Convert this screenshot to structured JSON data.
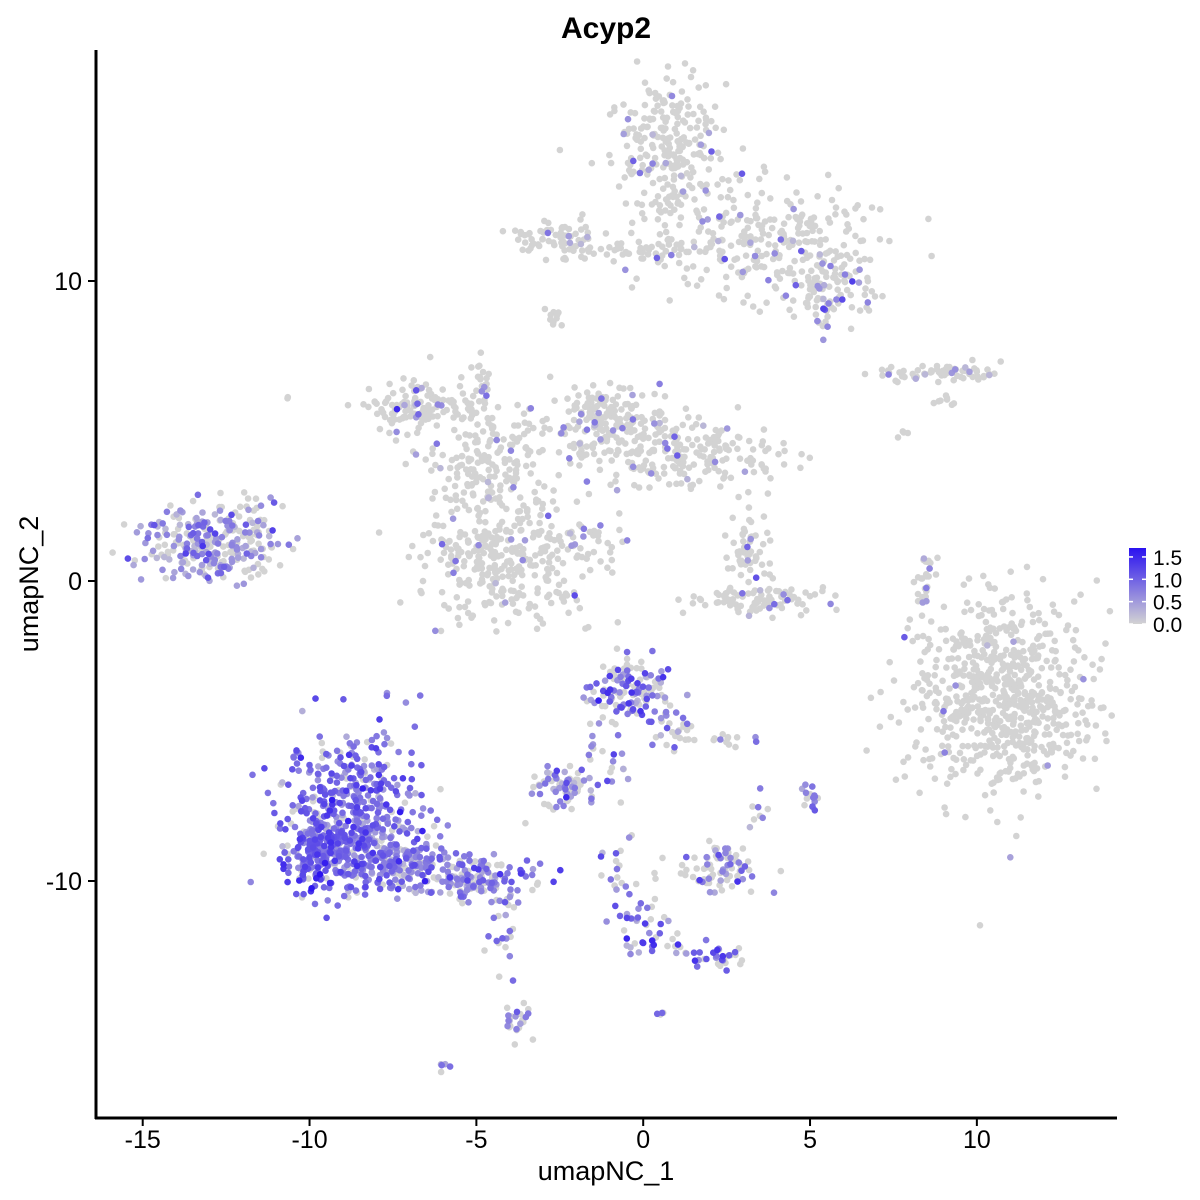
{
  "chart_data": {
    "type": "scatter",
    "title": "Acyp2",
    "xlabel": "umapNC_1",
    "ylabel": "umapNC_2",
    "xlim": [
      -16.4,
      14.2
    ],
    "ylim": [
      -17.9,
      17.7
    ],
    "x_ticks": [
      -15,
      -10,
      -5,
      0,
      5,
      10
    ],
    "x_tick_labels": [
      "-15",
      "-10",
      "-5",
      "0",
      "5",
      "10"
    ],
    "y_ticks": [
      -10,
      0,
      10
    ],
    "y_tick_labels": [
      "-10",
      "0",
      "10"
    ],
    "grid": false,
    "color_scale": {
      "low_color": "#d3d3d3",
      "high_color": "#2a12f0",
      "min": 0.0,
      "max": 1.7,
      "ticks": [
        0.0,
        0.5,
        1.0,
        1.5
      ],
      "tick_labels": [
        "0.0",
        "0.5",
        "1.0",
        "1.5"
      ],
      "legend_position": "right"
    },
    "clusters": [
      {
        "cx": 0.8,
        "cy": 14.4,
        "sx": 0.9,
        "sy": 1.3,
        "n": 260,
        "expr_frac": 0.06,
        "expr_mean": 0.6
      },
      {
        "cx": 3.6,
        "cy": 11.2,
        "sx": 1.7,
        "sy": 0.9,
        "n": 260,
        "expr_frac": 0.06,
        "expr_mean": 0.6
      },
      {
        "cx": 5.6,
        "cy": 9.7,
        "sx": 0.6,
        "sy": 0.5,
        "n": 90,
        "expr_frac": 0.22,
        "expr_mean": 0.7
      },
      {
        "cx": -2.6,
        "cy": 11.5,
        "sx": 0.7,
        "sy": 0.3,
        "n": 70,
        "expr_frac": 0.06,
        "expr_mean": 0.6
      },
      {
        "cx": -0.3,
        "cy": 11.0,
        "sx": 1.1,
        "sy": 0.15,
        "n": 40,
        "expr_frac": 0.05,
        "expr_mean": 0.6
      },
      {
        "cx": -2.7,
        "cy": 8.8,
        "sx": 0.15,
        "sy": 0.25,
        "n": 10,
        "expr_frac": 0.2,
        "expr_mean": 0.6
      },
      {
        "cx": -6.7,
        "cy": 5.8,
        "sx": 0.9,
        "sy": 0.4,
        "n": 120,
        "expr_frac": 0.06,
        "expr_mean": 0.6
      },
      {
        "cx": -4.6,
        "cy": 3.9,
        "sx": 0.9,
        "sy": 1.0,
        "n": 180,
        "expr_frac": 0.07,
        "expr_mean": 0.6
      },
      {
        "cx": -1.2,
        "cy": 5.4,
        "sx": 0.8,
        "sy": 0.6,
        "n": 160,
        "expr_frac": 0.1,
        "expr_mean": 0.6
      },
      {
        "cx": 1.4,
        "cy": 4.3,
        "sx": 1.6,
        "sy": 0.6,
        "n": 220,
        "expr_frac": 0.08,
        "expr_mean": 0.6
      },
      {
        "cx": -4.3,
        "cy": 0.7,
        "sx": 1.3,
        "sy": 1.0,
        "n": 330,
        "expr_frac": 0.07,
        "expr_mean": 0.6
      },
      {
        "cx": -4.8,
        "cy": 6.2,
        "sx": 0.15,
        "sy": 0.6,
        "n": 25,
        "expr_frac": 0.08,
        "expr_mean": 0.6
      },
      {
        "cx": -1.6,
        "cy": 1.3,
        "sx": 0.6,
        "sy": 0.35,
        "n": 20,
        "expr_frac": 0.3,
        "expr_mean": 0.6
      },
      {
        "cx": 3.1,
        "cy": 0.9,
        "sx": 0.35,
        "sy": 0.5,
        "n": 55,
        "expr_frac": 0.06,
        "expr_mean": 0.6
      },
      {
        "cx": 3.4,
        "cy": -0.6,
        "sx": 1.0,
        "sy": 0.25,
        "n": 90,
        "expr_frac": 0.03,
        "expr_mean": 0.6
      },
      {
        "cx": -13.1,
        "cy": 1.2,
        "sx": 1.0,
        "sy": 0.65,
        "n": 260,
        "expr_frac": 0.55,
        "expr_mean": 0.6
      },
      {
        "cx": -11.8,
        "cy": 1.8,
        "sx": 0.4,
        "sy": 0.5,
        "n": 30,
        "expr_frac": 0.4,
        "expr_mean": 0.6
      },
      {
        "cx": -0.4,
        "cy": -3.6,
        "sx": 0.6,
        "sy": 0.5,
        "n": 130,
        "expr_frac": 0.5,
        "expr_mean": 0.85
      },
      {
        "cx": 0.9,
        "cy": -4.9,
        "sx": 0.3,
        "sy": 0.5,
        "n": 30,
        "expr_frac": 0.3,
        "expr_mean": 0.7
      },
      {
        "cx": -1.2,
        "cy": -5.8,
        "sx": 0.4,
        "sy": 0.8,
        "n": 30,
        "expr_frac": 0.6,
        "expr_mean": 0.7
      },
      {
        "cx": -2.5,
        "cy": -6.9,
        "sx": 0.45,
        "sy": 0.3,
        "n": 70,
        "expr_frac": 0.5,
        "expr_mean": 0.7
      },
      {
        "cx": 2.6,
        "cy": -5.3,
        "sx": 0.45,
        "sy": 0.12,
        "n": 12,
        "expr_frac": 0.4,
        "expr_mean": 0.7
      },
      {
        "cx": -8.7,
        "cy": -7.6,
        "sx": 1.0,
        "sy": 1.3,
        "n": 420,
        "expr_frac": 0.85,
        "expr_mean": 0.85
      },
      {
        "cx": -9.6,
        "cy": -9.0,
        "sx": 0.7,
        "sy": 0.6,
        "n": 220,
        "expr_frac": 0.85,
        "expr_mean": 0.95
      },
      {
        "cx": -7.3,
        "cy": -9.3,
        "sx": 0.9,
        "sy": 0.5,
        "n": 200,
        "expr_frac": 0.75,
        "expr_mean": 0.75
      },
      {
        "cx": -5.2,
        "cy": -9.9,
        "sx": 0.9,
        "sy": 0.35,
        "n": 140,
        "expr_frac": 0.7,
        "expr_mean": 0.75
      },
      {
        "cx": -3.8,
        "cy": -14.6,
        "sx": 0.25,
        "sy": 0.5,
        "n": 25,
        "expr_frac": 0.5,
        "expr_mean": 0.7
      },
      {
        "cx": -4.2,
        "cy": -11.5,
        "sx": 0.35,
        "sy": 0.8,
        "n": 25,
        "expr_frac": 0.4,
        "expr_mean": 0.7
      },
      {
        "cx": 2.3,
        "cy": -9.6,
        "sx": 0.7,
        "sy": 0.35,
        "n": 70,
        "expr_frac": 0.35,
        "expr_mean": 0.7
      },
      {
        "cx": 2.5,
        "cy": -9.0,
        "sx": 0.25,
        "sy": 0.2,
        "n": 12,
        "expr_frac": 0.3,
        "expr_mean": 0.7
      },
      {
        "cx": 0.0,
        "cy": -11.6,
        "sx": 0.4,
        "sy": 0.6,
        "n": 35,
        "expr_frac": 0.7,
        "expr_mean": 0.85
      },
      {
        "cx": -0.8,
        "cy": -10.0,
        "sx": 0.3,
        "sy": 0.8,
        "n": 20,
        "expr_frac": 0.6,
        "expr_mean": 0.7
      },
      {
        "cx": 2.3,
        "cy": -12.5,
        "sx": 0.35,
        "sy": 0.2,
        "n": 30,
        "expr_frac": 0.7,
        "expr_mean": 1.0
      },
      {
        "cx": 1.3,
        "cy": -12.1,
        "sx": 0.5,
        "sy": 0.2,
        "n": 10,
        "expr_frac": 0.4,
        "expr_mean": 0.7
      },
      {
        "cx": 5.0,
        "cy": -7.3,
        "sx": 0.15,
        "sy": 0.25,
        "n": 15,
        "expr_frac": 0.6,
        "expr_mean": 0.7
      },
      {
        "cx": 3.4,
        "cy": -7.8,
        "sx": 0.15,
        "sy": 0.4,
        "n": 8,
        "expr_frac": 0.4,
        "expr_mean": 0.6
      },
      {
        "cx": -6.0,
        "cy": -16.2,
        "sx": 0.1,
        "sy": 0.1,
        "n": 5,
        "expr_frac": 0.6,
        "expr_mean": 0.7
      },
      {
        "cx": 0.6,
        "cy": -14.4,
        "sx": 0.08,
        "sy": 0.08,
        "n": 4,
        "expr_frac": 0.5,
        "expr_mean": 0.7
      },
      {
        "cx": 10.9,
        "cy": -3.8,
        "sx": 1.4,
        "sy": 1.6,
        "n": 720,
        "expr_frac": 0.02,
        "expr_mean": 0.6
      },
      {
        "cx": 8.4,
        "cy": -0.2,
        "sx": 0.2,
        "sy": 0.6,
        "n": 25,
        "expr_frac": 0.15,
        "expr_mean": 0.6
      },
      {
        "cx": 8.3,
        "cy": 6.9,
        "sx": 0.7,
        "sy": 0.15,
        "n": 40,
        "expr_frac": 0.05,
        "expr_mean": 0.6
      },
      {
        "cx": 9.6,
        "cy": 7.0,
        "sx": 0.6,
        "sy": 0.15,
        "n": 35,
        "expr_frac": 0.1,
        "expr_mean": 0.7
      },
      {
        "cx": 9.0,
        "cy": 6.1,
        "sx": 0.2,
        "sy": 0.15,
        "n": 8,
        "expr_frac": 0.0,
        "expr_mean": 0.0
      },
      {
        "cx": 7.8,
        "cy": 4.8,
        "sx": 0.1,
        "sy": 0.1,
        "n": 4,
        "expr_frac": 0.0,
        "expr_mean": 0.0
      },
      {
        "cx": -10.6,
        "cy": 6.1,
        "sx": 0.05,
        "sy": 0.05,
        "n": 2,
        "expr_frac": 0.0,
        "expr_mean": 0.0
      }
    ]
  }
}
